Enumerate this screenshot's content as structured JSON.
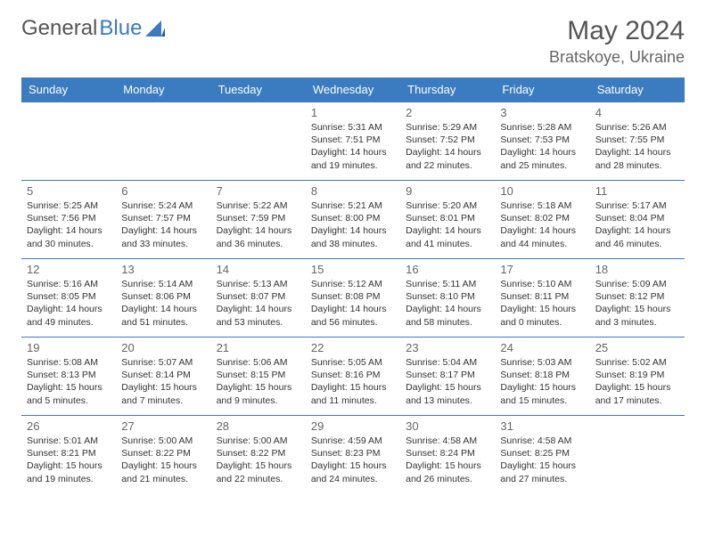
{
  "logo": {
    "text1": "General",
    "text2": "Blue"
  },
  "title": "May 2024",
  "location": "Bratskoye, Ukraine",
  "colors": {
    "header_bg": "#3b7bbf",
    "header_text": "#ffffff",
    "border": "#3b7bbf",
    "daynum": "#666666",
    "body_text": "#333333",
    "title_text": "#555555"
  },
  "day_names": [
    "Sunday",
    "Monday",
    "Tuesday",
    "Wednesday",
    "Thursday",
    "Friday",
    "Saturday"
  ],
  "weeks": [
    [
      null,
      null,
      null,
      {
        "n": "1",
        "sr": "5:31 AM",
        "ss": "7:51 PM",
        "dl": "14 hours and 19 minutes."
      },
      {
        "n": "2",
        "sr": "5:29 AM",
        "ss": "7:52 PM",
        "dl": "14 hours and 22 minutes."
      },
      {
        "n": "3",
        "sr": "5:28 AM",
        "ss": "7:53 PM",
        "dl": "14 hours and 25 minutes."
      },
      {
        "n": "4",
        "sr": "5:26 AM",
        "ss": "7:55 PM",
        "dl": "14 hours and 28 minutes."
      }
    ],
    [
      {
        "n": "5",
        "sr": "5:25 AM",
        "ss": "7:56 PM",
        "dl": "14 hours and 30 minutes."
      },
      {
        "n": "6",
        "sr": "5:24 AM",
        "ss": "7:57 PM",
        "dl": "14 hours and 33 minutes."
      },
      {
        "n": "7",
        "sr": "5:22 AM",
        "ss": "7:59 PM",
        "dl": "14 hours and 36 minutes."
      },
      {
        "n": "8",
        "sr": "5:21 AM",
        "ss": "8:00 PM",
        "dl": "14 hours and 38 minutes."
      },
      {
        "n": "9",
        "sr": "5:20 AM",
        "ss": "8:01 PM",
        "dl": "14 hours and 41 minutes."
      },
      {
        "n": "10",
        "sr": "5:18 AM",
        "ss": "8:02 PM",
        "dl": "14 hours and 44 minutes."
      },
      {
        "n": "11",
        "sr": "5:17 AM",
        "ss": "8:04 PM",
        "dl": "14 hours and 46 minutes."
      }
    ],
    [
      {
        "n": "12",
        "sr": "5:16 AM",
        "ss": "8:05 PM",
        "dl": "14 hours and 49 minutes."
      },
      {
        "n": "13",
        "sr": "5:14 AM",
        "ss": "8:06 PM",
        "dl": "14 hours and 51 minutes."
      },
      {
        "n": "14",
        "sr": "5:13 AM",
        "ss": "8:07 PM",
        "dl": "14 hours and 53 minutes."
      },
      {
        "n": "15",
        "sr": "5:12 AM",
        "ss": "8:08 PM",
        "dl": "14 hours and 56 minutes."
      },
      {
        "n": "16",
        "sr": "5:11 AM",
        "ss": "8:10 PM",
        "dl": "14 hours and 58 minutes."
      },
      {
        "n": "17",
        "sr": "5:10 AM",
        "ss": "8:11 PM",
        "dl": "15 hours and 0 minutes."
      },
      {
        "n": "18",
        "sr": "5:09 AM",
        "ss": "8:12 PM",
        "dl": "15 hours and 3 minutes."
      }
    ],
    [
      {
        "n": "19",
        "sr": "5:08 AM",
        "ss": "8:13 PM",
        "dl": "15 hours and 5 minutes."
      },
      {
        "n": "20",
        "sr": "5:07 AM",
        "ss": "8:14 PM",
        "dl": "15 hours and 7 minutes."
      },
      {
        "n": "21",
        "sr": "5:06 AM",
        "ss": "8:15 PM",
        "dl": "15 hours and 9 minutes."
      },
      {
        "n": "22",
        "sr": "5:05 AM",
        "ss": "8:16 PM",
        "dl": "15 hours and 11 minutes."
      },
      {
        "n": "23",
        "sr": "5:04 AM",
        "ss": "8:17 PM",
        "dl": "15 hours and 13 minutes."
      },
      {
        "n": "24",
        "sr": "5:03 AM",
        "ss": "8:18 PM",
        "dl": "15 hours and 15 minutes."
      },
      {
        "n": "25",
        "sr": "5:02 AM",
        "ss": "8:19 PM",
        "dl": "15 hours and 17 minutes."
      }
    ],
    [
      {
        "n": "26",
        "sr": "5:01 AM",
        "ss": "8:21 PM",
        "dl": "15 hours and 19 minutes."
      },
      {
        "n": "27",
        "sr": "5:00 AM",
        "ss": "8:22 PM",
        "dl": "15 hours and 21 minutes."
      },
      {
        "n": "28",
        "sr": "5:00 AM",
        "ss": "8:22 PM",
        "dl": "15 hours and 22 minutes."
      },
      {
        "n": "29",
        "sr": "4:59 AM",
        "ss": "8:23 PM",
        "dl": "15 hours and 24 minutes."
      },
      {
        "n": "30",
        "sr": "4:58 AM",
        "ss": "8:24 PM",
        "dl": "15 hours and 26 minutes."
      },
      {
        "n": "31",
        "sr": "4:58 AM",
        "ss": "8:25 PM",
        "dl": "15 hours and 27 minutes."
      },
      null
    ]
  ],
  "labels": {
    "sunrise": "Sunrise:",
    "sunset": "Sunset:",
    "daylight": "Daylight:"
  }
}
